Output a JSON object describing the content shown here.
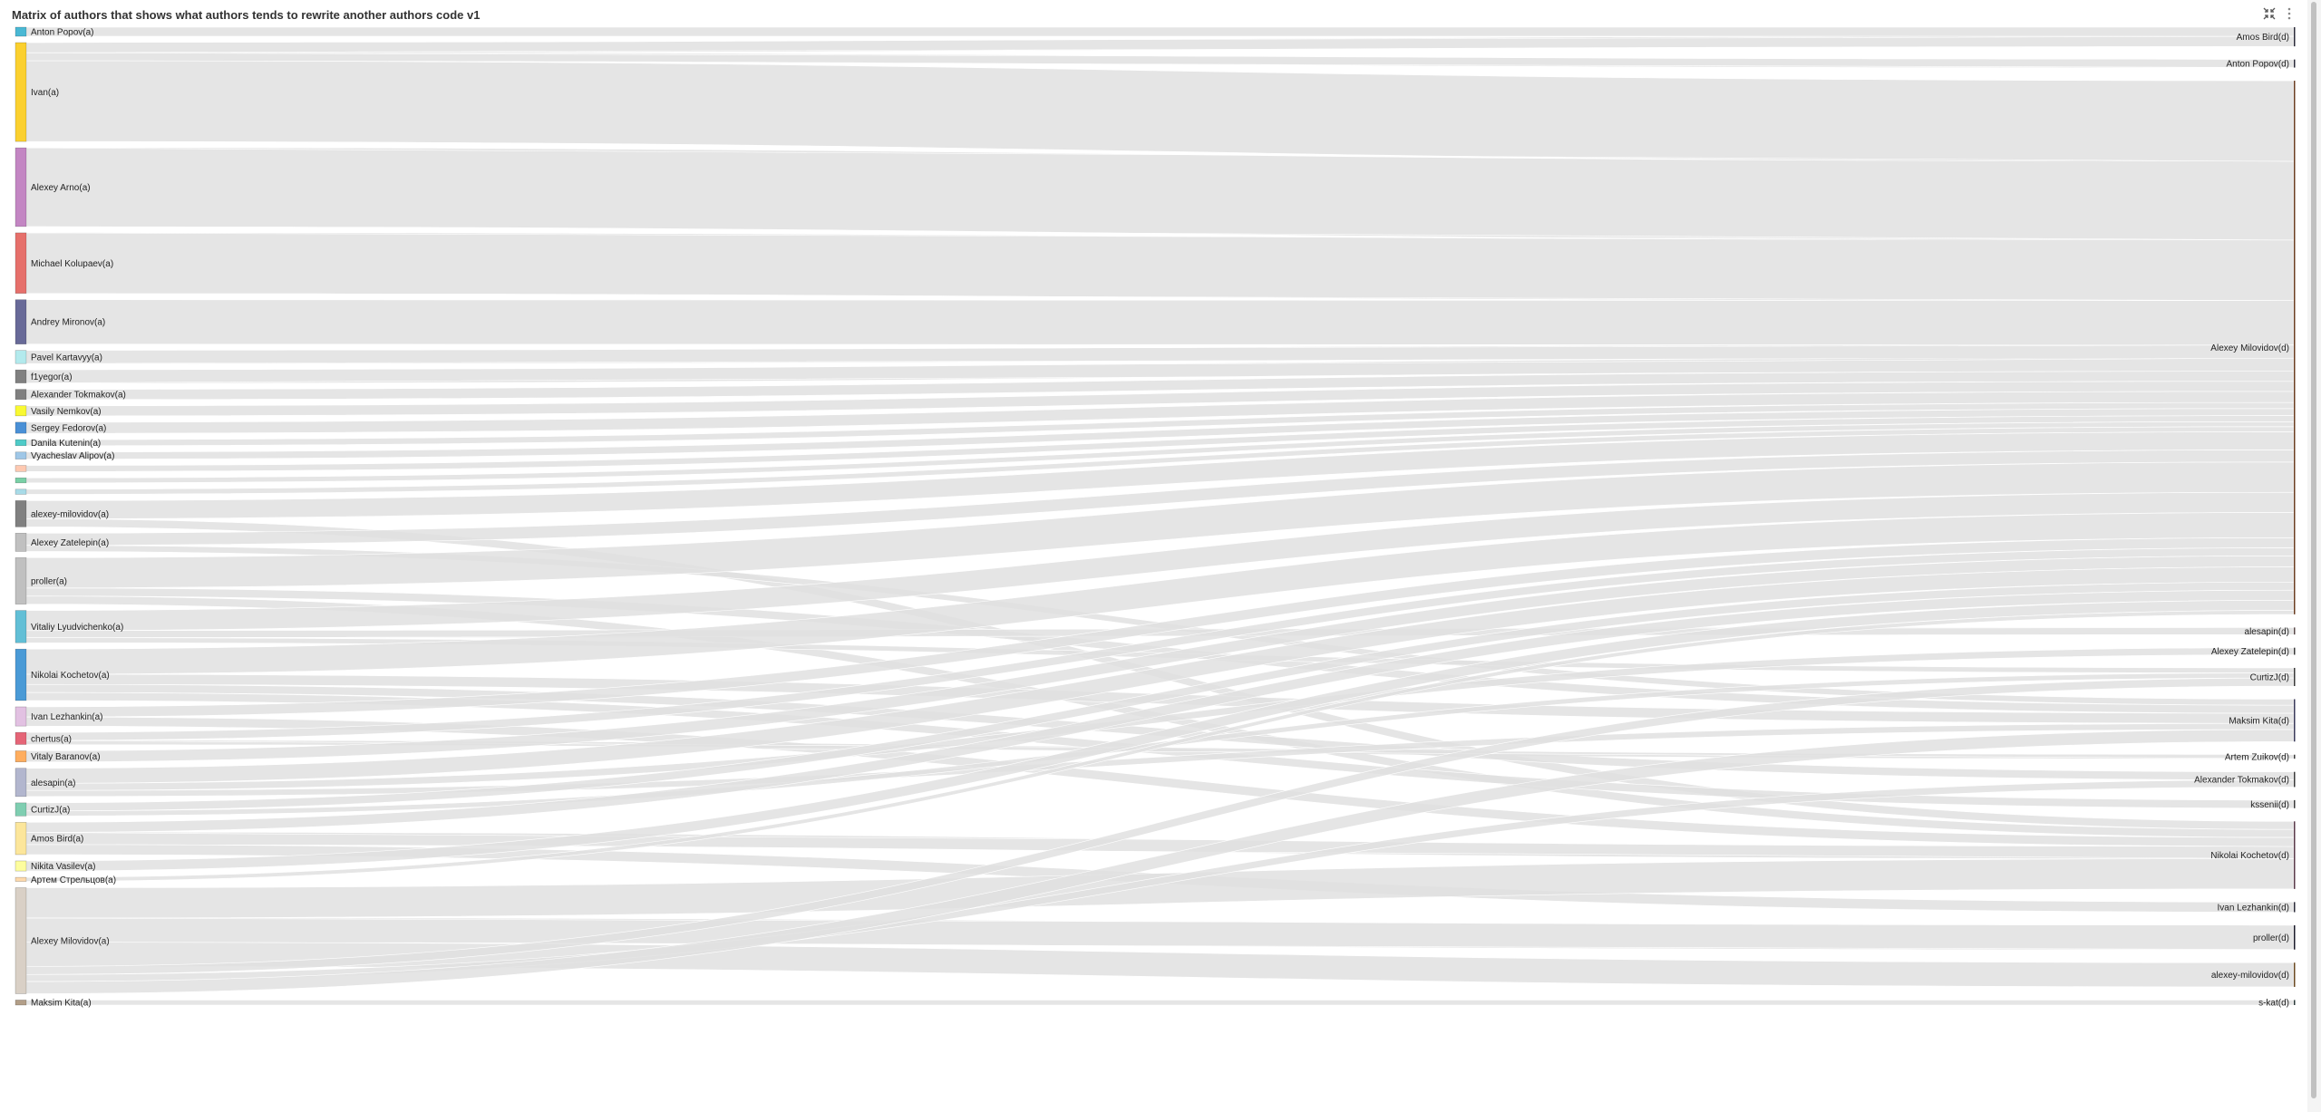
{
  "title": "Matrix of authors that shows what authors tends to rewrite another authors code v1",
  "icons": {
    "collapse": "collapse-arrows-icon",
    "menu": "vertical-dots-icon"
  },
  "chart_data": {
    "type": "sankey",
    "link_color": "#e0e0e0",
    "sources": [
      {
        "name": "Anton Popov(a)",
        "color": "#4ab8d4"
      },
      {
        "name": "Ivan(a)",
        "color": "#fbd02f"
      },
      {
        "name": "Alexey Arno(a)",
        "color": "#c386c3"
      },
      {
        "name": "Michael Kolupaev(a)",
        "color": "#e6706b"
      },
      {
        "name": "Andrey Mironov(a)",
        "color": "#686a98"
      },
      {
        "name": "Pavel Kartavyy(a)",
        "color": "#b3eaed"
      },
      {
        "name": "f1yegor(a)",
        "color": "#808080"
      },
      {
        "name": "Alexander Tokmakov(a)",
        "color": "#808080"
      },
      {
        "name": "Vasily Nemkov(a)",
        "color": "#f9f932"
      },
      {
        "name": "Sergey Fedorov(a)",
        "color": "#4a90d6"
      },
      {
        "name": "Danila Kutenin(a)",
        "color": "#4ecbc8"
      },
      {
        "name": "Vyacheslav Alipov(a)",
        "color": "#9fc7e7"
      },
      {
        "name": "",
        "color": "#fec9b1"
      },
      {
        "name": "",
        "color": "#79d0a6"
      },
      {
        "name": "",
        "color": "#a8dbe8"
      },
      {
        "name": "alexey-milovidov(a)",
        "color": "#808080"
      },
      {
        "name": "Alexey Zatelepin(a)",
        "color": "#c0c0c0"
      },
      {
        "name": "proller(a)",
        "color": "#c0c0c0"
      },
      {
        "name": "Vitaliy Lyudvichenko(a)",
        "color": "#62bfd6"
      },
      {
        "name": "Nikolai Kochetov(a)",
        "color": "#4a9ad6"
      },
      {
        "name": "Ivan Lezhankin(a)",
        "color": "#e2c1e2"
      },
      {
        "name": "chertus(a)",
        "color": "#e56577"
      },
      {
        "name": "Vitaly Baranov(a)",
        "color": "#ffad5e"
      },
      {
        "name": "alesapin(a)",
        "color": "#b2b6ce"
      },
      {
        "name": "CurtizJ(a)",
        "color": "#7fceb1"
      },
      {
        "name": "Amos Bird(a)",
        "color": "#fce69b"
      },
      {
        "name": "Nikita Vasilev(a)",
        "color": "#fdfd9e"
      },
      {
        "name": "Артем Стрельцов(a)",
        "color": "#fdd9ac"
      },
      {
        "name": "Alexey Milovidov(a)",
        "color": "#d9d0c6"
      },
      {
        "name": "Maksim Kita(a)",
        "color": "#b29e88"
      }
    ],
    "targets": [
      {
        "name": "Amos Bird(d)",
        "color": "#2b2b3a"
      },
      {
        "name": "Anton Popov(d)",
        "color": "#2b2b3a"
      },
      {
        "name": "Alexey Milovidov(d)",
        "color": "#6b3e22"
      },
      {
        "name": "alesapin(d)",
        "color": "#5a4a4a"
      },
      {
        "name": "Alexey Zatelepin(d)",
        "color": "#3a3a3a"
      },
      {
        "name": "CurtizJ(d)",
        "color": "#3a3a3a"
      },
      {
        "name": "Maksim Kita(d)",
        "color": "#3a3a5a"
      },
      {
        "name": "Artem Zuikov(d)",
        "color": "#3a3a3a"
      },
      {
        "name": "Alexander Tokmakov(d)",
        "color": "#3a3a3a"
      },
      {
        "name": "kssenii(d)",
        "color": "#3a3a3a"
      },
      {
        "name": "Nikolai Kochetov(d)",
        "color": "#5a3a4a"
      },
      {
        "name": "Ivan Lezhankin(d)",
        "color": "#2b2b3a"
      },
      {
        "name": "proller(d)",
        "color": "#1a1a2a"
      },
      {
        "name": "alexey-milovidov(d)",
        "color": "#6b4a22"
      },
      {
        "name": "s-kat(d)",
        "color": "#2b3a3a"
      }
    ],
    "links": [
      [
        0,
        0,
        9
      ],
      [
        1,
        0,
        10
      ],
      [
        1,
        1,
        8
      ],
      [
        1,
        2,
        80
      ],
      [
        2,
        2,
        78
      ],
      [
        3,
        2,
        60
      ],
      [
        4,
        2,
        44
      ],
      [
        5,
        2,
        13
      ],
      [
        6,
        2,
        13
      ],
      [
        7,
        2,
        10
      ],
      [
        8,
        2,
        10
      ],
      [
        9,
        2,
        11
      ],
      [
        10,
        2,
        6
      ],
      [
        11,
        2,
        7
      ],
      [
        12,
        2,
        6
      ],
      [
        13,
        2,
        5
      ],
      [
        14,
        2,
        5
      ],
      [
        15,
        2,
        18
      ],
      [
        15,
        10,
        8
      ],
      [
        16,
        2,
        12
      ],
      [
        16,
        6,
        6
      ],
      [
        17,
        2,
        30
      ],
      [
        17,
        6,
        8
      ],
      [
        17,
        10,
        8
      ],
      [
        18,
        2,
        20
      ],
      [
        18,
        3,
        7
      ],
      [
        18,
        5,
        5
      ],
      [
        19,
        2,
        25
      ],
      [
        19,
        6,
        10
      ],
      [
        19,
        8,
        8
      ],
      [
        19,
        9,
        8
      ],
      [
        20,
        2,
        10
      ],
      [
        20,
        10,
        9
      ],
      [
        21,
        2,
        8
      ],
      [
        21,
        7,
        4
      ],
      [
        22,
        2,
        11
      ],
      [
        23,
        2,
        15
      ],
      [
        23,
        4,
        7
      ],
      [
        23,
        6,
        6
      ],
      [
        24,
        2,
        8
      ],
      [
        24,
        5,
        5
      ],
      [
        25,
        2,
        10
      ],
      [
        25,
        10,
        12
      ],
      [
        25,
        11,
        10
      ],
      [
        26,
        2,
        10
      ],
      [
        27,
        2,
        4
      ],
      [
        28,
        10,
        30
      ],
      [
        28,
        12,
        24
      ],
      [
        28,
        13,
        24
      ],
      [
        28,
        5,
        8
      ],
      [
        28,
        8,
        7
      ],
      [
        28,
        6,
        12
      ],
      [
        29,
        14,
        5
      ]
    ]
  }
}
